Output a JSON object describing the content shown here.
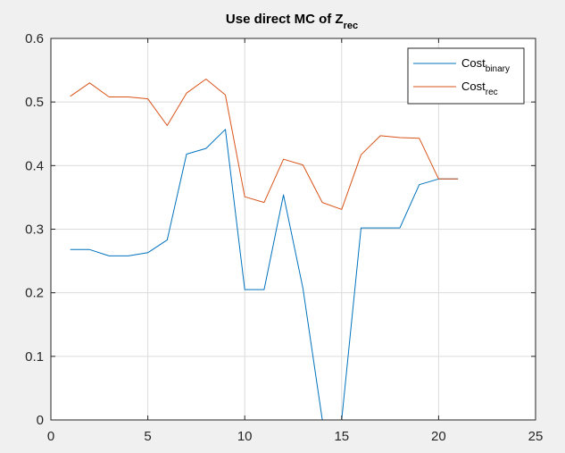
{
  "chart_data": {
    "type": "line",
    "title": "Use direct MC of Z",
    "title_subscript": "rec",
    "xlabel": "",
    "ylabel": "",
    "xlim": [
      0,
      25
    ],
    "ylim": [
      0,
      0.6
    ],
    "xticks": [
      0,
      5,
      10,
      15,
      20,
      25
    ],
    "yticks": [
      0,
      0.1,
      0.2,
      0.3,
      0.4,
      0.5,
      0.6
    ],
    "xtick_labels": [
      "0",
      "5",
      "10",
      "15",
      "20",
      "25"
    ],
    "ytick_labels": [
      "0",
      "0.1",
      "0.2",
      "0.3",
      "0.4",
      "0.5",
      "0.6"
    ],
    "grid": true,
    "legend_position": "top-right",
    "series": [
      {
        "name": "Cost",
        "name_subscript": "binary",
        "color": "#0072BD",
        "x": [
          1,
          2,
          3,
          4,
          5,
          6,
          7,
          8,
          9,
          10,
          11,
          12,
          13,
          14,
          15,
          16,
          17,
          18,
          19,
          20,
          21
        ],
        "y": [
          0.268,
          0.268,
          0.258,
          0.258,
          0.263,
          0.283,
          0.418,
          0.427,
          0.457,
          0.205,
          0.205,
          0.354,
          0.207,
          0.0,
          0.0,
          0.302,
          0.302,
          0.302,
          0.37,
          0.379,
          0.379
        ]
      },
      {
        "name": "Cost",
        "name_subscript": "rec",
        "color": "#D95319",
        "x": [
          1,
          2,
          3,
          4,
          5,
          6,
          7,
          8,
          9,
          10,
          11,
          12,
          13,
          14,
          15,
          16,
          17,
          18,
          19,
          20,
          21
        ],
        "y": [
          0.509,
          0.53,
          0.508,
          0.508,
          0.505,
          0.463,
          0.514,
          0.536,
          0.511,
          0.351,
          0.342,
          0.41,
          0.401,
          0.342,
          0.331,
          0.417,
          0.447,
          0.444,
          0.443,
          0.379,
          0.379
        ]
      }
    ]
  }
}
